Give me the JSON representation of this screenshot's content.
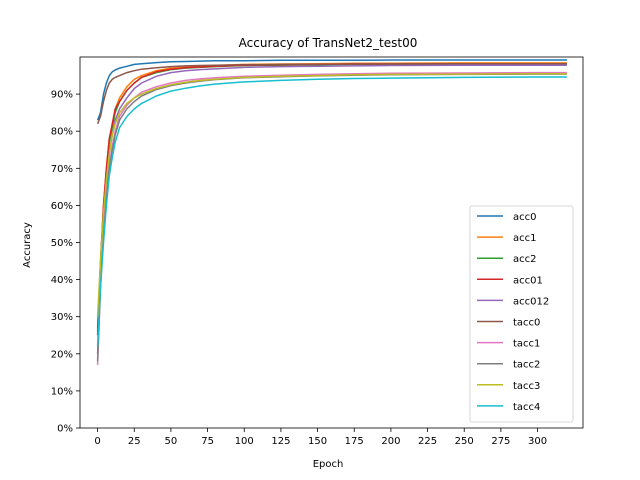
{
  "chart_data": {
    "type": "line",
    "title": "Accuracy of TransNet2_test00",
    "xlabel": "Epoch",
    "ylabel": "Accuracy",
    "xlim": [
      -12,
      331
    ],
    "ylim": [
      0,
      1.0
    ],
    "x_ticks": [
      0,
      25,
      50,
      75,
      100,
      125,
      150,
      175,
      200,
      225,
      250,
      275,
      300
    ],
    "y_ticks": [
      0,
      0.1,
      0.2,
      0.3,
      0.4,
      0.5,
      0.6,
      0.7,
      0.8,
      0.9
    ],
    "y_tick_labels": [
      "0%",
      "10%",
      "20%",
      "30%",
      "40%",
      "50%",
      "60%",
      "70%",
      "80%",
      "90%"
    ],
    "legend_position": "lower-right",
    "grid": false,
    "series": [
      {
        "name": "acc0",
        "color": "#1f77b4",
        "x": [
          0,
          2,
          4,
          6,
          8,
          10,
          12,
          15,
          20,
          25,
          30,
          40,
          50,
          60,
          70,
          80,
          100,
          125,
          150,
          175,
          200,
          250,
          300,
          320
        ],
        "y": [
          0.83,
          0.85,
          0.9,
          0.93,
          0.95,
          0.96,
          0.965,
          0.97,
          0.975,
          0.98,
          0.982,
          0.985,
          0.987,
          0.988,
          0.989,
          0.99,
          0.99,
          0.991,
          0.991,
          0.991,
          0.992,
          0.992,
          0.992,
          0.992
        ]
      },
      {
        "name": "acc1",
        "color": "#ff7f0e",
        "x": [
          0,
          2,
          4,
          6,
          8,
          10,
          12,
          15,
          20,
          25,
          30,
          40,
          50,
          60,
          70,
          80,
          100,
          125,
          150,
          175,
          200,
          250,
          300,
          320
        ],
        "y": [
          0.27,
          0.45,
          0.6,
          0.7,
          0.78,
          0.82,
          0.86,
          0.89,
          0.92,
          0.94,
          0.95,
          0.963,
          0.97,
          0.973,
          0.975,
          0.977,
          0.98,
          0.981,
          0.982,
          0.983,
          0.983,
          0.984,
          0.984,
          0.984
        ]
      },
      {
        "name": "acc2",
        "color": "#2ca02c",
        "x": [
          0,
          2,
          4,
          6,
          8,
          10,
          12,
          15,
          20,
          25,
          30,
          40,
          50,
          60,
          70,
          80,
          100,
          125,
          150,
          175,
          200,
          250,
          300,
          320
        ],
        "y": [
          0.26,
          0.44,
          0.59,
          0.69,
          0.77,
          0.81,
          0.85,
          0.88,
          0.91,
          0.93,
          0.945,
          0.958,
          0.966,
          0.97,
          0.972,
          0.974,
          0.977,
          0.978,
          0.979,
          0.98,
          0.98,
          0.981,
          0.981,
          0.981
        ]
      },
      {
        "name": "acc01",
        "color": "#d62728",
        "x": [
          0,
          2,
          4,
          6,
          8,
          10,
          12,
          15,
          20,
          25,
          30,
          40,
          50,
          60,
          70,
          80,
          100,
          125,
          150,
          175,
          200,
          250,
          300,
          320
        ],
        "y": [
          0.25,
          0.44,
          0.6,
          0.7,
          0.78,
          0.82,
          0.86,
          0.88,
          0.91,
          0.93,
          0.945,
          0.96,
          0.967,
          0.971,
          0.973,
          0.975,
          0.978,
          0.979,
          0.98,
          0.981,
          0.981,
          0.982,
          0.982,
          0.982
        ]
      },
      {
        "name": "acc012",
        "color": "#9467bd",
        "x": [
          0,
          2,
          4,
          6,
          8,
          10,
          12,
          15,
          20,
          25,
          30,
          40,
          50,
          60,
          70,
          80,
          100,
          125,
          150,
          175,
          200,
          250,
          300,
          320
        ],
        "y": [
          0.2,
          0.4,
          0.55,
          0.66,
          0.74,
          0.79,
          0.83,
          0.86,
          0.89,
          0.915,
          0.93,
          0.948,
          0.958,
          0.963,
          0.966,
          0.968,
          0.972,
          0.974,
          0.975,
          0.976,
          0.977,
          0.978,
          0.978,
          0.978
        ]
      },
      {
        "name": "tacc0",
        "color": "#8c564b",
        "x": [
          0,
          2,
          4,
          6,
          8,
          10,
          12,
          15,
          20,
          25,
          30,
          40,
          50,
          60,
          70,
          80,
          100,
          125,
          150,
          175,
          200,
          250,
          300,
          320
        ],
        "y": [
          0.82,
          0.84,
          0.88,
          0.91,
          0.93,
          0.94,
          0.945,
          0.95,
          0.958,
          0.963,
          0.967,
          0.971,
          0.974,
          0.976,
          0.977,
          0.978,
          0.979,
          0.98,
          0.98,
          0.981,
          0.981,
          0.982,
          0.982,
          0.982
        ]
      },
      {
        "name": "tacc1",
        "color": "#e377c2",
        "x": [
          0,
          2,
          4,
          6,
          8,
          10,
          12,
          15,
          20,
          25,
          30,
          40,
          50,
          60,
          70,
          80,
          100,
          125,
          150,
          175,
          200,
          250,
          300,
          320
        ],
        "y": [
          0.17,
          0.38,
          0.52,
          0.63,
          0.71,
          0.76,
          0.8,
          0.84,
          0.87,
          0.89,
          0.905,
          0.92,
          0.93,
          0.937,
          0.941,
          0.944,
          0.948,
          0.951,
          0.953,
          0.955,
          0.956,
          0.957,
          0.958,
          0.958
        ]
      },
      {
        "name": "tacc2",
        "color": "#7f7f7f",
        "x": [
          0,
          2,
          4,
          6,
          8,
          10,
          12,
          15,
          20,
          25,
          30,
          40,
          50,
          60,
          70,
          80,
          100,
          125,
          150,
          175,
          200,
          250,
          300,
          320
        ],
        "y": [
          0.18,
          0.38,
          0.52,
          0.62,
          0.7,
          0.75,
          0.79,
          0.83,
          0.86,
          0.88,
          0.895,
          0.912,
          0.923,
          0.93,
          0.935,
          0.939,
          0.944,
          0.947,
          0.949,
          0.951,
          0.952,
          0.953,
          0.954,
          0.954
        ]
      },
      {
        "name": "tacc3",
        "color": "#bcbd22",
        "x": [
          0,
          2,
          4,
          6,
          8,
          10,
          12,
          15,
          20,
          25,
          30,
          40,
          50,
          60,
          70,
          80,
          100,
          125,
          150,
          175,
          200,
          250,
          300,
          320
        ],
        "y": [
          0.3,
          0.45,
          0.58,
          0.67,
          0.74,
          0.79,
          0.82,
          0.85,
          0.875,
          0.89,
          0.9,
          0.915,
          0.925,
          0.932,
          0.937,
          0.94,
          0.945,
          0.948,
          0.95,
          0.952,
          0.953,
          0.954,
          0.955,
          0.955
        ]
      },
      {
        "name": "tacc4",
        "color": "#17becf",
        "x": [
          0,
          2,
          4,
          6,
          8,
          10,
          12,
          15,
          20,
          25,
          30,
          40,
          50,
          60,
          70,
          80,
          100,
          125,
          150,
          175,
          200,
          250,
          300,
          320
        ],
        "y": [
          0.22,
          0.38,
          0.5,
          0.6,
          0.68,
          0.73,
          0.77,
          0.81,
          0.84,
          0.86,
          0.875,
          0.895,
          0.908,
          0.916,
          0.922,
          0.927,
          0.933,
          0.937,
          0.94,
          0.942,
          0.943,
          0.945,
          0.946,
          0.946
        ]
      }
    ]
  }
}
